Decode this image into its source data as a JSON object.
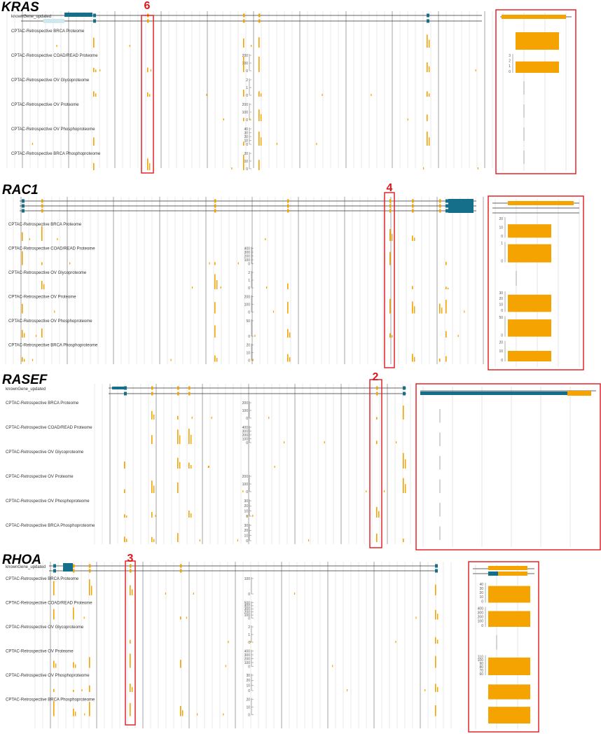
{
  "colors": {
    "gene": "#166f8a",
    "signal": "#f5a300",
    "highlight": "#e0151c",
    "grid": "#d5d5d5",
    "gridDark": "#9a9a9a"
  },
  "panels": [
    {
      "gene": "KRAS",
      "gene_track_label": "knownGene_updated",
      "highlight_label": "6",
      "tracks": [
        {
          "label": "CPTAC-Retrospective BRCA Proteome",
          "ticks": []
        },
        {
          "label": "CPTAC-Retrospective COAD/READ Proteome",
          "ticks": [
            "200",
            "100",
            "0"
          ]
        },
        {
          "label": "CPTAC-Retrospective OV Glycoproteome",
          "ticks": [
            "2",
            "1",
            "0"
          ]
        },
        {
          "label": "CPTAC-Retrospective OV Proteome",
          "ticks": [
            "200",
            "100",
            "0"
          ]
        },
        {
          "label": "CPTAC-Retrospective OV Phosphoproteome",
          "ticks": [
            "40",
            "30",
            "20",
            "10",
            "0"
          ]
        },
        {
          "label": "CPTAC-Retrospective BRCA Phosphoproteome",
          "ticks": [
            "20",
            "10",
            "0"
          ]
        }
      ],
      "zoom_ticks": [
        [],
        [
          "3",
          "2",
          "1",
          "0"
        ],
        [],
        [],
        [],
        []
      ],
      "zoom_fill": [
        1,
        0.65,
        0,
        0,
        0,
        0
      ]
    },
    {
      "gene": "RAC1",
      "gene_track_label": "",
      "highlight_label": "4",
      "tracks": [
        {
          "label": "CPTAC-Retrospective BRCA Proteome",
          "ticks": []
        },
        {
          "label": "CPTAC-Retrospective COAD/READ Proteome",
          "ticks": [
            "400",
            "300",
            "200",
            "100",
            "0"
          ]
        },
        {
          "label": "CPTAC-Retrospective OV Glycoproteome",
          "ticks": [
            "2",
            "1",
            "0"
          ]
        },
        {
          "label": "CPTAC-Retrospective OV Proteome",
          "ticks": [
            "200",
            "100",
            "0"
          ]
        },
        {
          "label": "CPTAC-Retrospective OV Phosphoproteome",
          "ticks": [
            "50",
            "0"
          ]
        },
        {
          "label": "CPTAC-Retrospective BRCA Phosphoproteome",
          "ticks": [
            "20",
            "10",
            "0"
          ]
        }
      ],
      "zoom_ticks": [
        [
          "20",
          "10",
          "0"
        ],
        [
          "1",
          "0"
        ],
        [],
        [
          "30",
          "20",
          "10",
          "0"
        ],
        [
          "50",
          "0"
        ],
        [
          "20",
          "10",
          "0"
        ]
      ],
      "zoom_fill": [
        0.7,
        0.95,
        0,
        0.9,
        0.9,
        0.55
      ]
    },
    {
      "gene": "RASEF",
      "gene_track_label": "knownGene_updated",
      "highlight_label": "2",
      "tracks": [
        {
          "label": "CPTAC-Retrospective BRCA Proteome",
          "ticks": [
            "200",
            "100",
            "0"
          ]
        },
        {
          "label": "CPTAC-Retrospective COAD/READ Proteome",
          "ticks": [
            "400",
            "300",
            "200",
            "100",
            "0"
          ]
        },
        {
          "label": "CPTAC-Retrospective OV Glycoproteome",
          "ticks": []
        },
        {
          "label": "CPTAC-Retrospective OV Proteome",
          "ticks": [
            "200",
            "100",
            "0"
          ]
        },
        {
          "label": "CPTAC-Retrospective OV Phosphoproteome",
          "ticks": [
            "30",
            "20",
            "10",
            "0"
          ]
        },
        {
          "label": "CPTAC-Retrospective BRCA Phosphoproteome",
          "ticks": [
            "30",
            "20",
            "10",
            "0"
          ]
        }
      ],
      "zoom_ticks": [
        [],
        [],
        [],
        [],
        [],
        []
      ],
      "zoom_fill": [
        0,
        0,
        0,
        0,
        0,
        0
      ]
    },
    {
      "gene": "RHOA",
      "gene_track_label": "knownGene_updated",
      "highlight_label": "3",
      "tracks": [
        {
          "label": "CPTAC-Retrospective BRCA Proteome",
          "ticks": [
            "100",
            "0"
          ]
        },
        {
          "label": "CPTAC-Retrospective COAD/READ Proteome",
          "ticks": [
            "500",
            "400",
            "300",
            "200",
            "100",
            "0"
          ]
        },
        {
          "label": "CPTAC-Retrospective OV Glycoproteome",
          "ticks": [
            "2",
            "1",
            "0"
          ]
        },
        {
          "label": "CPTAC-Retrospective OV Proteome",
          "ticks": [
            "400",
            "300",
            "200",
            "100",
            "0"
          ]
        },
        {
          "label": "CPTAC-Retrospective OV Phosphoproteome",
          "ticks": [
            "30",
            "20",
            "10",
            "0"
          ]
        },
        {
          "label": "CPTAC-Retrospective BRCA Phosphoproteome",
          "ticks": [
            "20",
            "10",
            "0"
          ]
        }
      ],
      "zoom_ticks": [
        [
          "40",
          "30",
          "20",
          "10",
          "0"
        ],
        [
          "400",
          "300",
          "200",
          "100",
          "0"
        ],
        [],
        [
          "110",
          "100",
          "90",
          "80",
          "70",
          "60"
        ],
        [],
        []
      ],
      "zoom_fill": [
        0.9,
        0.85,
        0,
        0.95,
        0.8,
        0.9
      ]
    }
  ]
}
